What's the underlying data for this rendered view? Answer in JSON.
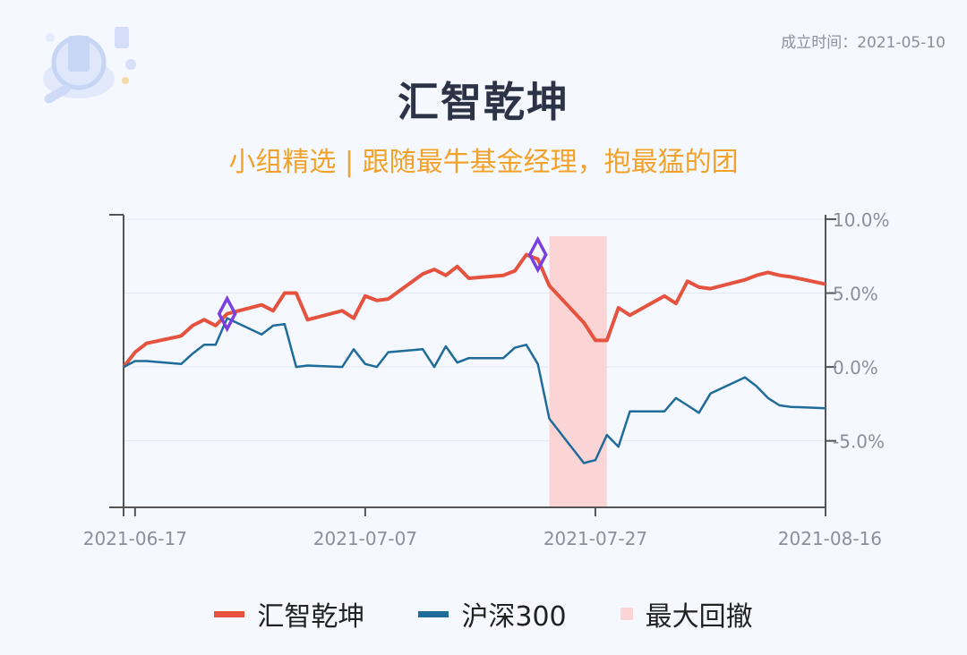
{
  "header": {
    "established": "成立时间：2021-05-10",
    "title": "汇智乾坤",
    "subtitle": "小组精选 | 跟随最牛基金经理，抱最猛的团"
  },
  "legend": [
    {
      "label": "汇智乾坤",
      "color": "#e5533f",
      "kind": "line"
    },
    {
      "label": "沪深300",
      "color": "#1f6b9a",
      "kind": "line"
    },
    {
      "label": "最大回撤",
      "color": "#fbd5d5",
      "kind": "box"
    }
  ],
  "chart_data": {
    "type": "line",
    "x_tick_labels": [
      "2021-06-17",
      "2021-07-07",
      "2021-07-27",
      "2021-08-16"
    ],
    "y_tick_labels": [
      "10.0%",
      "5.0%",
      "0.0%",
      "-5.0%"
    ],
    "y_ticks": [
      10,
      5,
      0,
      -5
    ],
    "ylim": [
      -9.5,
      10.3
    ],
    "x": [
      "2021-06-16",
      "2021-06-17",
      "2021-06-18",
      "2021-06-21",
      "2021-06-22",
      "2021-06-23",
      "2021-06-24",
      "2021-06-25",
      "2021-06-28",
      "2021-06-29",
      "2021-06-30",
      "2021-07-01",
      "2021-07-02",
      "2021-07-05",
      "2021-07-06",
      "2021-07-07",
      "2021-07-08",
      "2021-07-09",
      "2021-07-12",
      "2021-07-13",
      "2021-07-14",
      "2021-07-15",
      "2021-07-16",
      "2021-07-19",
      "2021-07-20",
      "2021-07-21",
      "2021-07-22",
      "2021-07-23",
      "2021-07-26",
      "2021-07-27",
      "2021-07-28",
      "2021-07-29",
      "2021-07-30",
      "2021-08-02",
      "2021-08-03",
      "2021-08-04",
      "2021-08-05",
      "2021-08-06",
      "2021-08-09",
      "2021-08-10",
      "2021-08-11",
      "2021-08-12",
      "2021-08-13",
      "2021-08-16"
    ],
    "x_range": [
      "2021-06-16",
      "2021-08-16"
    ],
    "series": [
      {
        "name": "汇智乾坤",
        "color": "#e5533f",
        "values": [
          0.0,
          1.0,
          1.6,
          2.1,
          2.8,
          3.2,
          2.8,
          3.6,
          4.2,
          3.8,
          5.0,
          5.0,
          3.2,
          3.8,
          3.3,
          4.8,
          4.5,
          4.6,
          6.3,
          6.6,
          6.2,
          6.8,
          6.0,
          6.2,
          6.5,
          7.6,
          7.3,
          5.5,
          3.0,
          1.8,
          1.8,
          4.0,
          3.5,
          4.8,
          4.3,
          5.8,
          5.4,
          5.3,
          5.9,
          6.2,
          6.4,
          6.2,
          6.1,
          5.6
        ]
      },
      {
        "name": "沪深300",
        "color": "#1f6b9a",
        "values": [
          0.0,
          0.4,
          0.4,
          0.2,
          0.9,
          1.5,
          1.5,
          3.3,
          2.2,
          2.8,
          2.9,
          0.0,
          0.1,
          0.0,
          1.2,
          0.2,
          0.0,
          1.0,
          1.2,
          0.0,
          1.4,
          0.3,
          0.6,
          0.6,
          1.3,
          1.5,
          0.2,
          -3.5,
          -6.5,
          -6.3,
          -4.6,
          -5.4,
          -3.0,
          -3.0,
          -2.1,
          -2.6,
          -3.1,
          -1.8,
          -0.7,
          -1.3,
          -2.1,
          -2.6,
          -2.7,
          -2.8
        ]
      }
    ],
    "max_drawdown": {
      "start": "2021-07-23",
      "end": "2021-07-28"
    },
    "markers": [
      {
        "x": "2021-06-25",
        "y": 3.6
      },
      {
        "x": "2021-07-22",
        "y": 7.6
      }
    ],
    "marker_color": "#7b3fe0",
    "grid": true,
    "legend_position": "bottom"
  }
}
